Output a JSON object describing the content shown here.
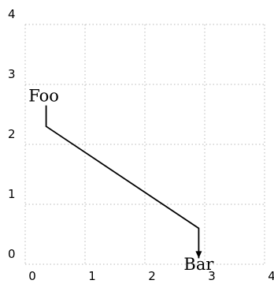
{
  "chart_data": {
    "type": "line",
    "title": "",
    "xlabel": "",
    "ylabel": "",
    "xlim": [
      0,
      4
    ],
    "ylim": [
      0,
      4
    ],
    "grid": true,
    "x_ticks": [
      "0",
      "1",
      "2",
      "3",
      "4"
    ],
    "y_ticks": [
      "0",
      "1",
      "2",
      "3",
      "4"
    ],
    "annotations": [
      {
        "text": "Foo",
        "x": 0.35,
        "y": 2.65
      },
      {
        "text": "Bar",
        "x": 2.9,
        "y": 0.0
      }
    ],
    "connector": {
      "from": "Foo",
      "to": "Bar",
      "style": "arrow",
      "points": [
        [
          0.35,
          2.65
        ],
        [
          0.35,
          2.3
        ],
        [
          2.9,
          0.6
        ],
        [
          2.9,
          0.1
        ]
      ]
    }
  }
}
